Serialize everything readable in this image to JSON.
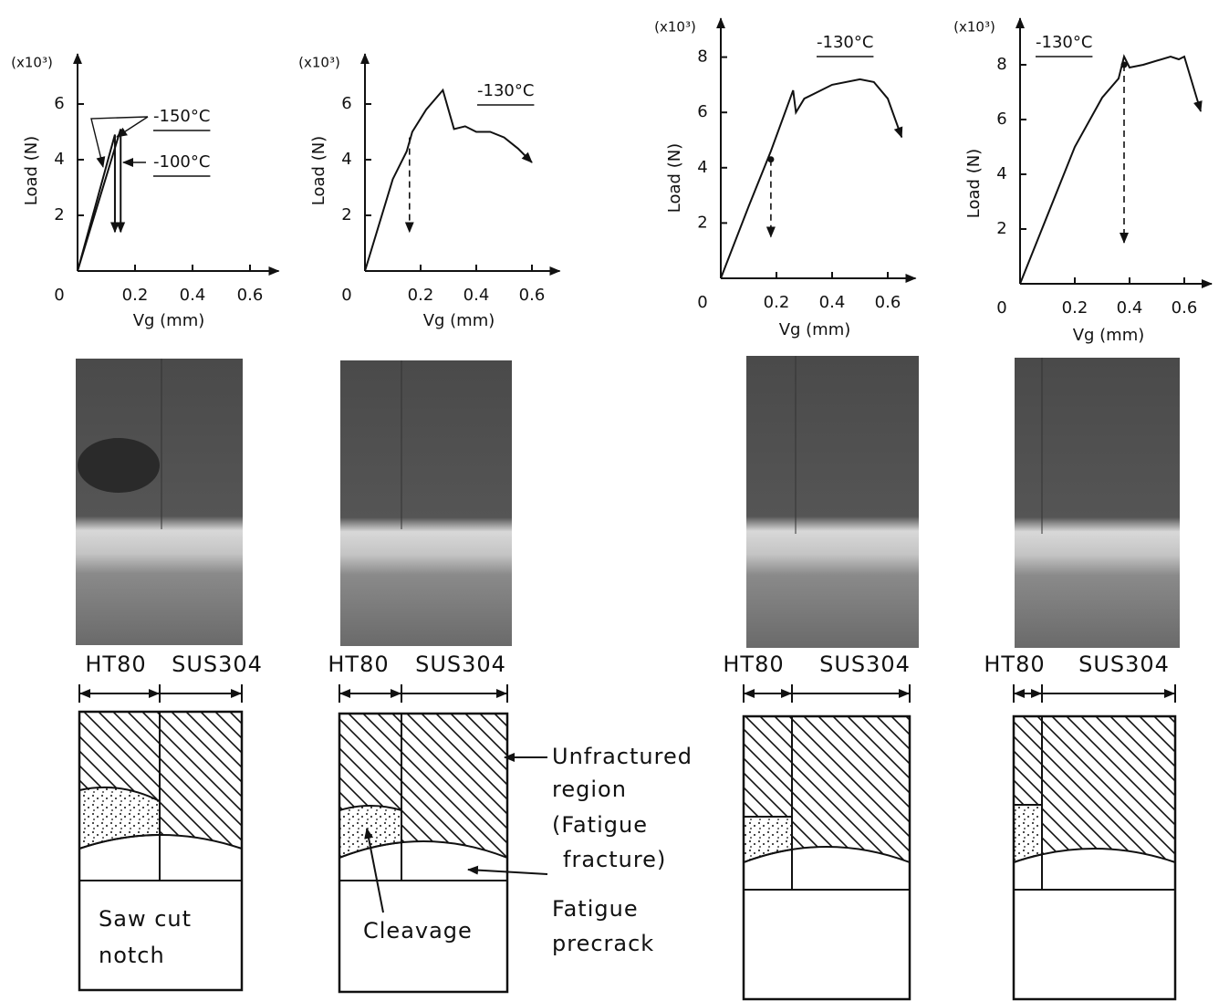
{
  "chart_data": [
    {
      "type": "line",
      "y_multiplier": "(x10³)",
      "y_label": "Load (N)",
      "x_label": "Vg (mm)",
      "xlim": [
        0,
        0.7
      ],
      "ylim": [
        0,
        7.8
      ],
      "xticks": [
        0,
        0.2,
        0.4,
        0.6
      ],
      "yticks": [
        2,
        4,
        6
      ],
      "series": [
        {
          "name": "-150°C",
          "color": "#111111",
          "x": [
            0,
            0.13,
            0.13
          ],
          "values": [
            0,
            4.9,
            1.4
          ]
        },
        {
          "name": "-100°C",
          "color": "#111111",
          "x": [
            0,
            0.15,
            0.15
          ],
          "values": [
            0,
            5.1,
            1.4
          ]
        }
      ]
    },
    {
      "type": "line",
      "y_multiplier": "(x10³)",
      "y_label": "Load (N)",
      "x_label": "Vg (mm)",
      "xlim": [
        0,
        0.7
      ],
      "ylim": [
        0,
        7.8
      ],
      "xticks": [
        0,
        0.2,
        0.4,
        0.6
      ],
      "yticks": [
        2,
        4,
        6
      ],
      "series": [
        {
          "name": "-130°C",
          "color": "#111111",
          "x": [
            0,
            0.1,
            0.15,
            0.17,
            0.22,
            0.28,
            0.32,
            0.36,
            0.4,
            0.45,
            0.5,
            0.55,
            0.6
          ],
          "values": [
            0,
            3.3,
            4.3,
            5.0,
            5.8,
            6.5,
            5.1,
            5.2,
            5.0,
            5.0,
            4.8,
            4.4,
            3.9
          ]
        },
        {
          "color": "#111111",
          "dashed": true,
          "x": [
            0.16,
            0.16
          ],
          "values": [
            4.8,
            1.4
          ]
        }
      ]
    },
    {
      "type": "line",
      "y_multiplier": "(x10³)",
      "y_label": "Load (N)",
      "x_label": "Vg (mm)",
      "xlim": [
        0,
        0.7
      ],
      "ylim": [
        0,
        9.4
      ],
      "xticks": [
        0,
        0.2,
        0.4,
        0.6
      ],
      "yticks": [
        2,
        4,
        6,
        8
      ],
      "series": [
        {
          "name": "-130°C",
          "color": "#111111",
          "x": [
            0,
            0.1,
            0.18,
            0.26,
            0.27,
            0.3,
            0.4,
            0.5,
            0.55,
            0.6,
            0.65
          ],
          "values": [
            0,
            2.6,
            4.6,
            6.8,
            6.0,
            6.5,
            7.0,
            7.2,
            7.1,
            6.5,
            5.1
          ]
        },
        {
          "color": "#111111",
          "dashed": true,
          "dot": true,
          "x": [
            0.18,
            0.18
          ],
          "values": [
            4.3,
            1.5
          ]
        }
      ]
    },
    {
      "type": "line",
      "y_multiplier": "(x10³)",
      "y_label": "Load (N)",
      "x_label": "Vg (mm)",
      "xlim": [
        0,
        0.7
      ],
      "ylim": [
        0,
        9.7
      ],
      "xticks": [
        0,
        0.2,
        0.4,
        0.6
      ],
      "yticks": [
        2,
        4,
        6,
        8
      ],
      "series": [
        {
          "name": "-130°C",
          "color": "#111111",
          "x": [
            0,
            0.2,
            0.3,
            0.36,
            0.38,
            0.4,
            0.45,
            0.55,
            0.58,
            0.6,
            0.66
          ],
          "values": [
            0,
            5.0,
            6.8,
            7.5,
            8.3,
            7.9,
            8.0,
            8.3,
            8.2,
            8.3,
            6.3
          ]
        },
        {
          "color": "#111111",
          "dashed": true,
          "dot": true,
          "x": [
            0.38,
            0.38
          ],
          "values": [
            8.0,
            1.5
          ]
        }
      ]
    }
  ],
  "diagrams": [
    {
      "materials": [
        "HT80",
        "SUS304"
      ],
      "note": [
        "Saw cut",
        "notch"
      ]
    },
    {
      "materials": [
        "HT80",
        "SUS304"
      ],
      "note": [
        "Cleavage"
      ]
    },
    {
      "materials": [
        "HT80",
        "SUS304"
      ]
    },
    {
      "materials": [
        "HT80",
        "SUS304"
      ]
    }
  ],
  "callouts": {
    "unfractured": [
      "Unfractured",
      "region",
      "(Fatigue",
      "fracture)"
    ],
    "precrack": [
      "Fatigue",
      "precrack"
    ]
  }
}
